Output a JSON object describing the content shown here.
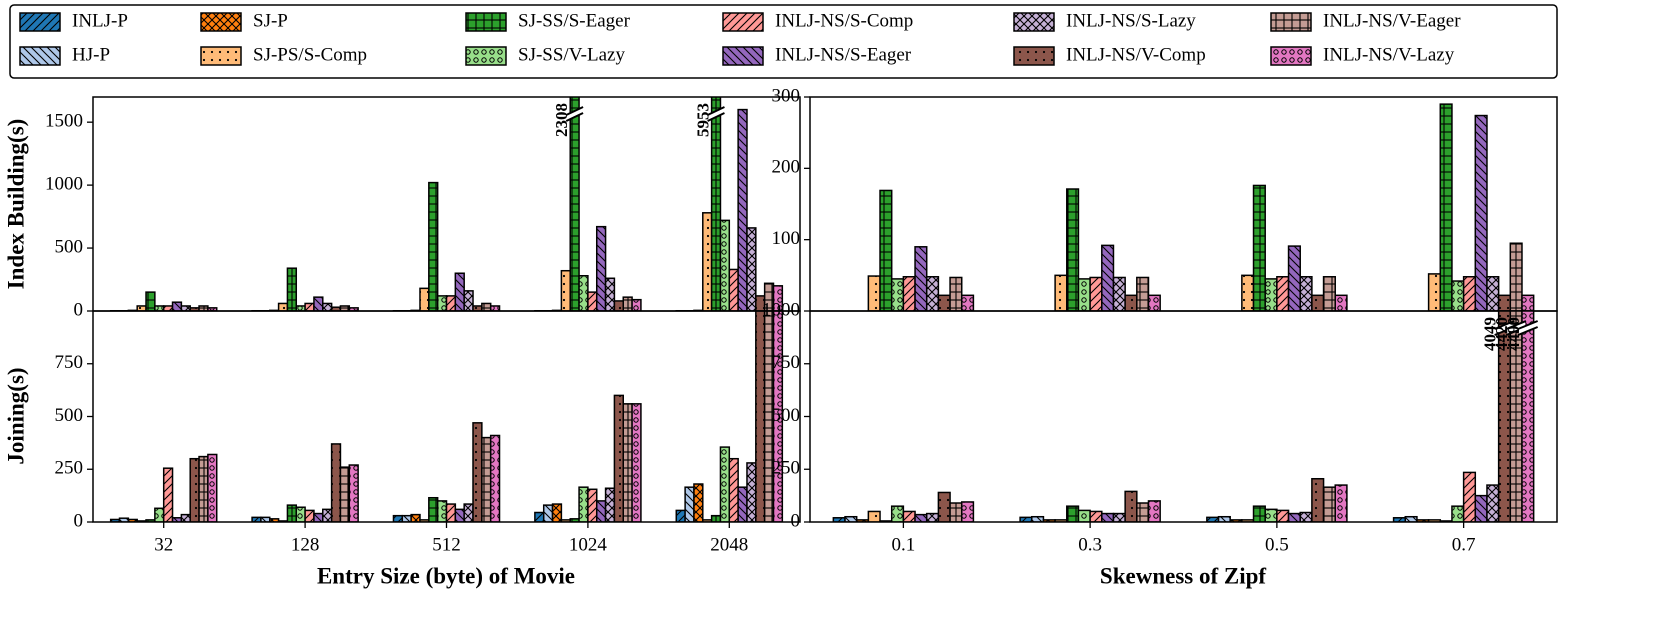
{
  "chart_data": {
    "type": "bar",
    "series": [
      {
        "name": "INLJ-P",
        "color": "#1f77b4",
        "hatch": "/"
      },
      {
        "name": "HJ-P",
        "color": "#aec7e8",
        "hatch": "\\"
      },
      {
        "name": "SJ-P",
        "color": "#ff7f0e",
        "hatch": "x"
      },
      {
        "name": "SJ-PS/S-Comp",
        "color": "#ffbb78",
        "hatch": "."
      },
      {
        "name": "SJ-SS/S-Eager",
        "color": "#2ca02c",
        "hatch": "+"
      },
      {
        "name": "SJ-SS/V-Lazy",
        "color": "#98df8a",
        "hatch": "o"
      },
      {
        "name": "INLJ-NS/S-Comp",
        "color": "#ff9896",
        "hatch": "/"
      },
      {
        "name": "INLJ-NS/S-Eager",
        "color": "#9467bd",
        "hatch": "\\"
      },
      {
        "name": "INLJ-NS/S-Lazy",
        "color": "#c5b0d5",
        "hatch": "x"
      },
      {
        "name": "INLJ-NS/V-Comp",
        "color": "#8c564b",
        "hatch": "."
      },
      {
        "name": "INLJ-NS/V-Eager",
        "color": "#c49c94",
        "hatch": "+"
      },
      {
        "name": "INLJ-NS/V-Lazy",
        "color": "#e377c2",
        "hatch": "o"
      }
    ],
    "columns": [
      {
        "xlabel": "Entry Size (byte) of Movie",
        "categories": [
          "32",
          "128",
          "512",
          "1024",
          "2048"
        ],
        "top": {
          "ylabel": "Index Building(s)",
          "ylim": [
            0,
            1700
          ],
          "yticks": [
            0,
            500,
            1000,
            1500
          ],
          "values": [
            [
              2,
              2,
              2,
              2,
              2
            ],
            [
              2,
              2,
              2,
              2,
              2
            ],
            [
              5,
              5,
              5,
              5,
              5
            ],
            [
              40,
              60,
              180,
              320,
              780
            ],
            [
              150,
              340,
              1020,
              2308,
              5953
            ],
            [
              40,
              40,
              120,
              280,
              720
            ],
            [
              40,
              60,
              120,
              150,
              330
            ],
            [
              70,
              110,
              300,
              670,
              1600
            ],
            [
              40,
              60,
              160,
              260,
              660
            ],
            [
              25,
              30,
              40,
              80,
              120
            ],
            [
              40,
              40,
              60,
              110,
              220
            ],
            [
              25,
              25,
              40,
              90,
              200
            ]
          ]
        },
        "bottom": {
          "ylabel": "Joining(s)",
          "ylim": [
            0,
            1000
          ],
          "yticks": [
            0,
            250,
            500,
            750
          ],
          "values": [
            [
              12,
              22,
              30,
              45,
              55
            ],
            [
              18,
              22,
              30,
              80,
              165
            ],
            [
              12,
              15,
              35,
              85,
              180
            ],
            [
              5,
              5,
              10,
              10,
              10
            ],
            [
              10,
              80,
              115,
              15,
              30
            ],
            [
              65,
              70,
              100,
              165,
              355
            ],
            [
              255,
              55,
              85,
              155,
              300
            ],
            [
              20,
              40,
              60,
              100,
              165
            ],
            [
              35,
              60,
              85,
              160,
              280
            ],
            [
              300,
              370,
              470,
              600,
              1000
            ],
            [
              310,
              260,
              400,
              560,
              1000
            ],
            [
              320,
              270,
              410,
              560,
              1000
            ]
          ]
        }
      },
      {
        "xlabel": "Skewness of Zipf",
        "categories": [
          "0.1",
          "0.3",
          "0.5",
          "0.7"
        ],
        "top": {
          "ylim": [
            0,
            300
          ],
          "yticks": [
            100,
            200,
            300
          ],
          "values": [
            [
              0,
              0,
              0,
              0
            ],
            [
              0,
              0,
              0,
              0
            ],
            [
              0,
              0,
              0,
              0
            ],
            [
              49,
              50,
              50,
              52
            ],
            [
              169,
              171,
              176,
              290
            ],
            [
              45,
              45,
              45,
              42
            ],
            [
              48,
              47,
              48,
              48
            ],
            [
              90,
              92,
              91,
              274
            ],
            [
              48,
              47,
              48,
              48
            ],
            [
              22,
              22,
              22,
              22
            ],
            [
              47,
              47,
              48,
              95
            ],
            [
              22,
              22,
              22,
              22
            ]
          ]
        },
        "bottom": {
          "ylim": [
            0,
            1000
          ],
          "yticks": [
            0,
            250,
            500,
            750,
            1000
          ],
          "values": [
            [
              20,
              22,
              22,
              20
            ],
            [
              25,
              25,
              25,
              25
            ],
            [
              10,
              10,
              10,
              10
            ],
            [
              50,
              10,
              10,
              10
            ],
            [
              5,
              75,
              75,
              5
            ],
            [
              75,
              55,
              60,
              75
            ],
            [
              50,
              50,
              55,
              235
            ],
            [
              35,
              40,
              40,
              125
            ],
            [
              40,
              40,
              45,
              175
            ],
            [
              140,
              145,
              205,
              4049
            ],
            [
              90,
              90,
              165,
              4420
            ],
            [
              95,
              100,
              175,
              4490
            ]
          ]
        }
      }
    ]
  }
}
